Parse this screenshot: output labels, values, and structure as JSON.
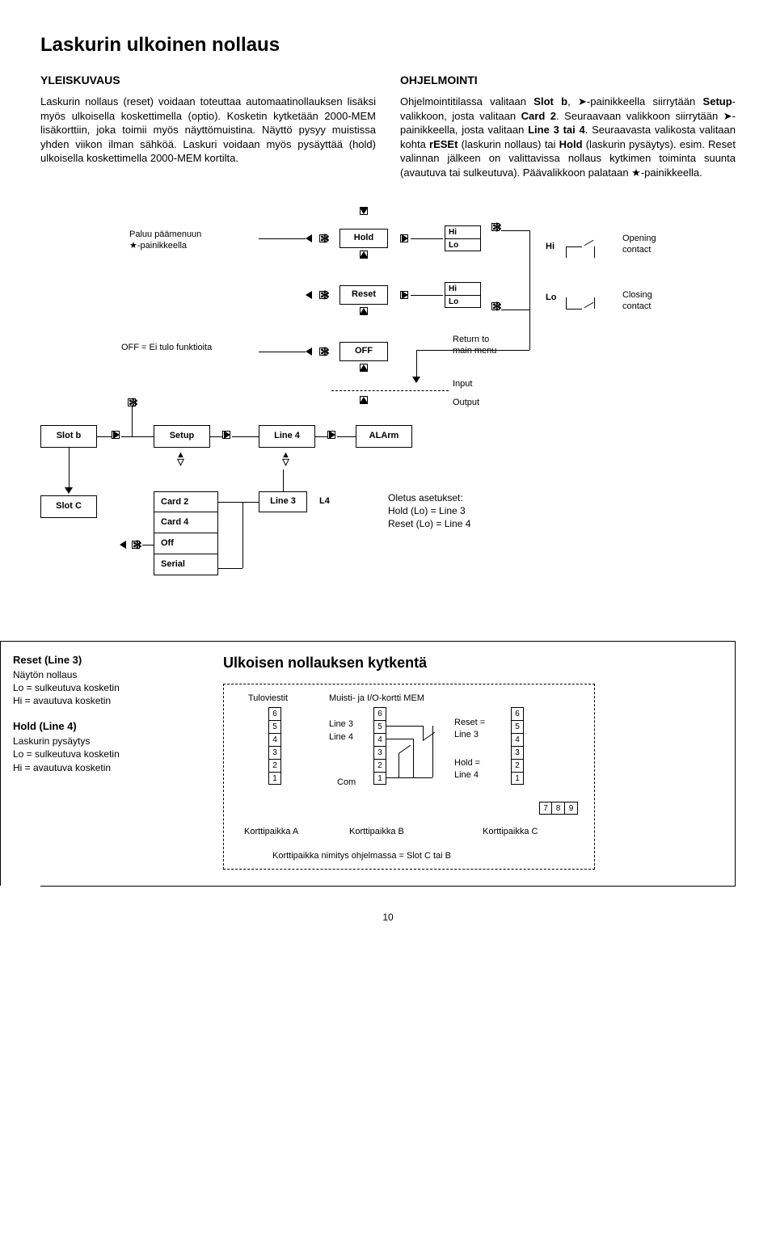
{
  "title": "Laskurin ulkoinen nollaus",
  "left": {
    "heading": "YLEISKUVAUS",
    "body": "Laskurin nollaus (reset) voidaan toteuttaa automaatinollauksen lisäksi myös ulkoisella koskettimella (optio). Kosketin kytketään 2000-MEM lisäkorttiin, joka toimii myös näyttömuistina. Näyttö pysyy muistissa yhden viikon ilman sähköä. Laskuri voidaan myös pysäyttää (hold) ulkoisella koskettimella 2000-MEM kortilta."
  },
  "right": {
    "heading": "OHJELMOINTI",
    "body_html": "Ohjelmointitilassa valitaan <b>Slot b</b>, ➤-painikkeella siirrytään <b>Setup</b>-valikkoon, josta valitaan <b>Card 2</b>. Seuraavaan valikkoon siirrytään ➤-painikkeella, josta valitaan <b>Line 3 tai 4</b>. Seuraavasta valikosta valitaan kohta <b>rESEt</b> (laskurin nollaus) tai <b>Hold</b> (laskurin pysäytys). esim. Reset valinnan jälkeen on valittavissa nollaus kytkimen toiminta suunta (avautuva tai sulkeutuva). Päävalikkoon palataan ★-painikkeella."
  },
  "diagram": {
    "paluu": "Paluu päämenuun\n★-painikkeella",
    "off_note": "OFF = Ei tulo funktioita",
    "hold": "Hold",
    "reset": "Reset",
    "off": "OFF",
    "hi": "Hi",
    "lo": "Lo",
    "opening": "Opening\ncontact",
    "closing": "Closing\ncontact",
    "return": "Return to\nmain menu",
    "input": "Input",
    "output": "Output",
    "slotb": "Slot b",
    "slotc": "Slot C",
    "setup": "Setup",
    "line4": "Line 4",
    "line3": "Line 3",
    "l4": "L4",
    "alarm": "ALArm",
    "card2": "Card 2",
    "card4": "Card 4",
    "offbox": "Off",
    "serial": "Serial",
    "defaults": "Oletus asetukset:\nHold (Lo) = Line 3\nReset (Lo) = Line 4"
  },
  "wiring": {
    "reset_h": "Reset (Line 3)",
    "reset_t": "Näytön nollaus\nLo = sulkeutuva kosketin\nHi = avautuva kosketin",
    "hold_h": "Hold (Line 4)",
    "hold_t": "Laskurin pysäytys\nLo = sulkeutuva kosketin\nHi = avautuva kosketin",
    "title": "Ulkoisen nollauksen kytkentä",
    "tulo": "Tuloviestit",
    "muisti": "Muisti- ja I/O-kortti MEM",
    "line3": "Line 3",
    "line4": "Line 4",
    "com": "Com",
    "reset_eq": "Reset =\nLine 3",
    "hold_eq": "Hold =\nLine 4",
    "slotA": "Korttipaikka A",
    "slotB": "Korttipaikka  B",
    "slotC": "Korttipaikka C",
    "note": "Korttipaikka nimitys ohjelmassa = Slot C tai B"
  },
  "page": "10"
}
